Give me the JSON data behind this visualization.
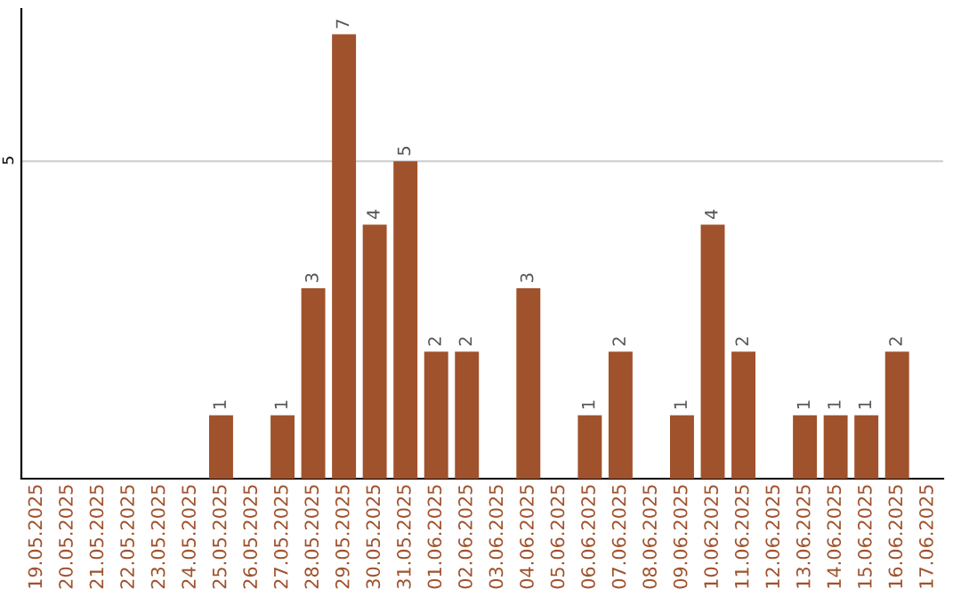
{
  "chart_data": {
    "type": "bar",
    "categories": [
      "19.05.2025",
      "20.05.2025",
      "21.05.2025",
      "22.05.2025",
      "23.05.2025",
      "24.05.2025",
      "25.05.2025",
      "26.05.2025",
      "27.05.2025",
      "28.05.2025",
      "29.05.2025",
      "30.05.2025",
      "31.05.2025",
      "01.06.2025",
      "02.06.2025",
      "03.06.2025",
      "04.06.2025",
      "05.06.2025",
      "06.06.2025",
      "07.06.2025",
      "08.06.2025",
      "09.06.2025",
      "10.06.2025",
      "11.06.2025",
      "12.06.2025",
      "13.06.2025",
      "14.06.2025",
      "15.06.2025",
      "16.06.2025",
      "17.06.2025"
    ],
    "values": [
      0,
      0,
      0,
      0,
      0,
      0,
      1,
      0,
      1,
      3,
      7,
      4,
      5,
      2,
      2,
      0,
      3,
      0,
      1,
      2,
      0,
      1,
      4,
      2,
      0,
      1,
      1,
      1,
      2,
      0
    ],
    "value_labels": [
      null,
      null,
      null,
      null,
      null,
      null,
      "1",
      null,
      "1",
      "3",
      "7",
      "4",
      "5",
      "2",
      "2",
      null,
      "3",
      null,
      "1",
      "2",
      null,
      "1",
      "4",
      "2",
      null,
      "1",
      "1",
      "1",
      "2",
      null
    ],
    "color": "#a0522d",
    "ylim": [
      0,
      7.4
    ],
    "yticks": [
      5
    ],
    "grid": "y"
  }
}
